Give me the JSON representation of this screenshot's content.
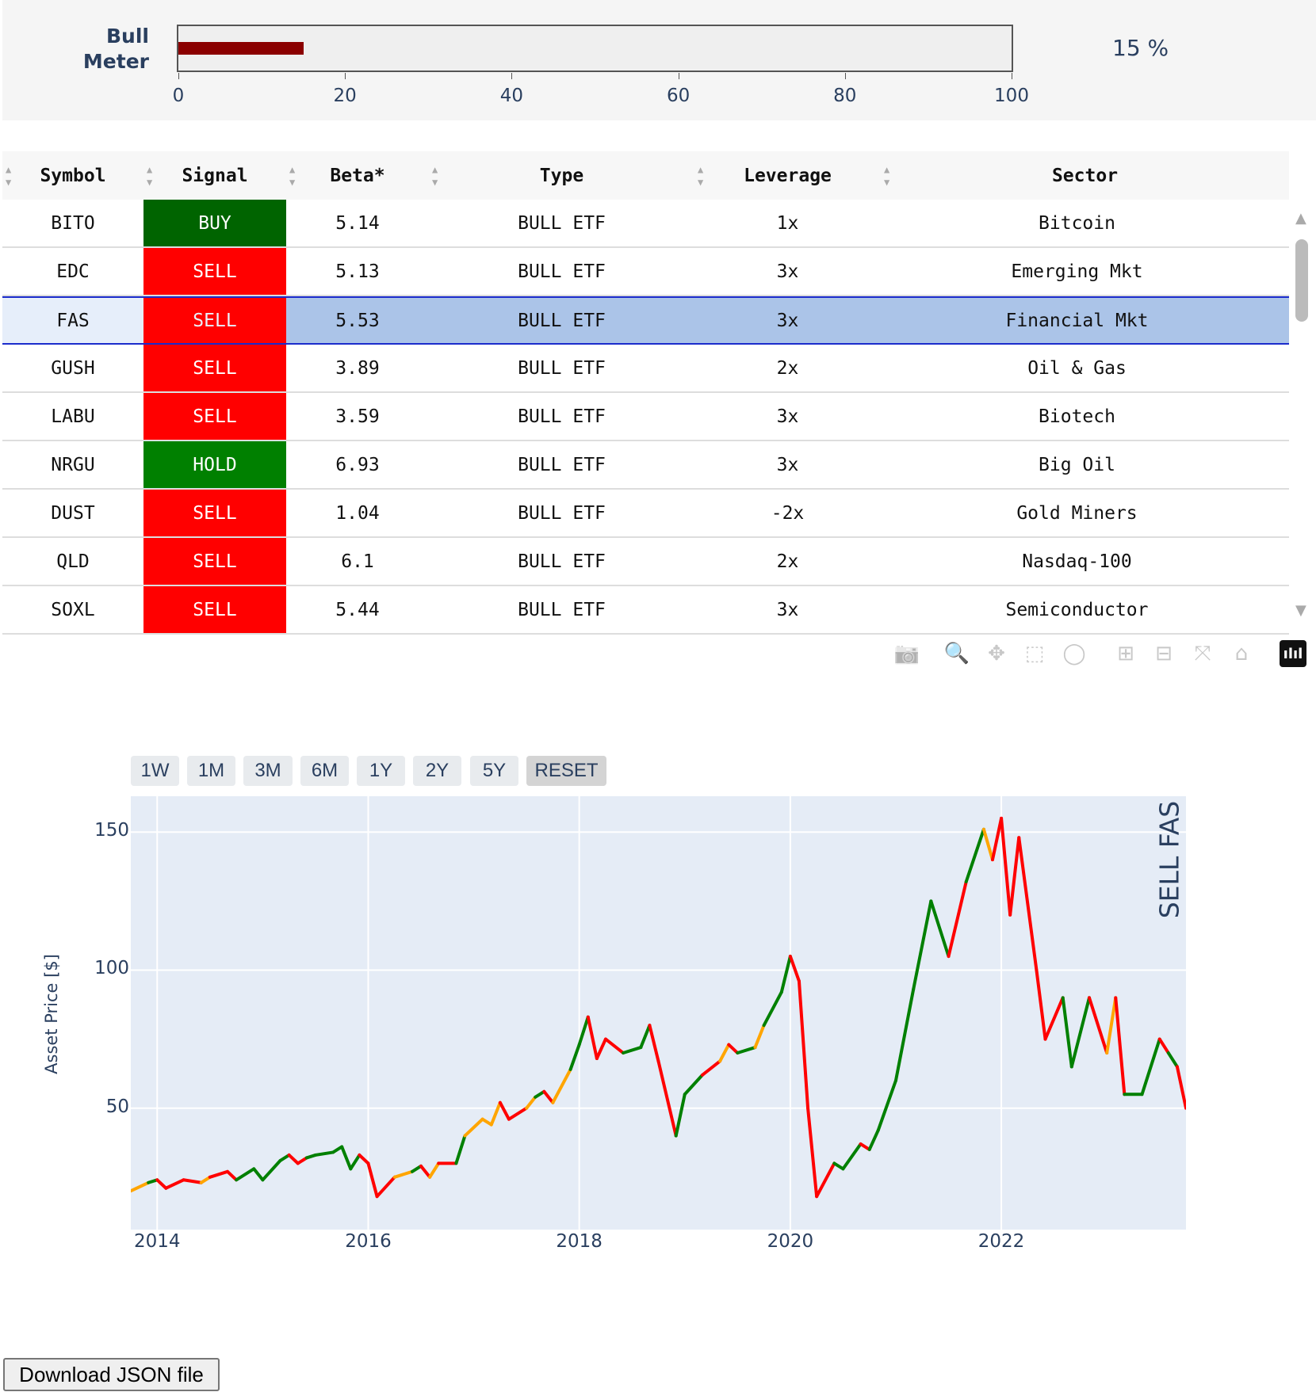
{
  "bull_meter": {
    "label_line1": "Bull",
    "label_line2": "Meter",
    "value": 15,
    "value_text": "15 %",
    "bar_color": "#8b0000",
    "ticks": [
      "0",
      "20",
      "40",
      "60",
      "80",
      "100"
    ]
  },
  "table": {
    "headers": [
      "Symbol",
      "Signal",
      "Beta*",
      "Type",
      "Leverage",
      "Sector"
    ],
    "signal_colors": {
      "BUY": "#006400",
      "HOLD": "#008000",
      "SELL": "#ff0000"
    },
    "selected_row": 2,
    "rows": [
      {
        "symbol": "BITO",
        "signal": "BUY",
        "beta": "5.14",
        "type": "BULL ETF",
        "leverage": "1x",
        "sector": "Bitcoin"
      },
      {
        "symbol": "EDC",
        "signal": "SELL",
        "beta": "5.13",
        "type": "BULL ETF",
        "leverage": "3x",
        "sector": "Emerging Mkt"
      },
      {
        "symbol": "FAS",
        "signal": "SELL",
        "beta": "5.53",
        "type": "BULL ETF",
        "leverage": "3x",
        "sector": "Financial Mkt"
      },
      {
        "symbol": "GUSH",
        "signal": "SELL",
        "beta": "3.89",
        "type": "BULL ETF",
        "leverage": "2x",
        "sector": "Oil & Gas"
      },
      {
        "symbol": "LABU",
        "signal": "SELL",
        "beta": "3.59",
        "type": "BULL ETF",
        "leverage": "3x",
        "sector": "Biotech"
      },
      {
        "symbol": "NRGU",
        "signal": "HOLD",
        "beta": "6.93",
        "type": "BULL ETF",
        "leverage": "3x",
        "sector": "Big Oil"
      },
      {
        "symbol": "DUST",
        "signal": "SELL",
        "beta": "1.04",
        "type": "BULL ETF",
        "leverage": "-2x",
        "sector": "Gold Miners"
      },
      {
        "symbol": "QLD",
        "signal": "SELL",
        "beta": "6.1",
        "type": "BULL ETF",
        "leverage": "2x",
        "sector": "Nasdaq-100"
      },
      {
        "symbol": "SOXL",
        "signal": "SELL",
        "beta": "5.44",
        "type": "BULL ETF",
        "leverage": "3x",
        "sector": "Semiconductor"
      }
    ]
  },
  "toolbar": {
    "icons": [
      "camera-icon",
      "zoom-icon",
      "pan-icon",
      "box-select-icon",
      "lasso-icon",
      "zoom-in-icon",
      "zoom-out-icon",
      "autoscale-icon",
      "reset-axes-icon",
      "plotly-logo-icon"
    ]
  },
  "range_buttons": [
    "1W",
    "1M",
    "3M",
    "6M",
    "1Y",
    "2Y",
    "5Y",
    "RESET"
  ],
  "chart_data": {
    "type": "line",
    "ylabel": "Asset Price [$]",
    "annotation": "SELL FAS",
    "xlim": [
      "2013-10",
      "2023-10"
    ],
    "ylim": [
      6,
      163
    ],
    "x_ticks": [
      "2014",
      "2016",
      "2018",
      "2020",
      "2022"
    ],
    "y_ticks": [
      50,
      100,
      150
    ],
    "grid": true,
    "signal_colors": {
      "g": "#008000",
      "r": "#ff0000",
      "o": "#ffa500"
    },
    "points": [
      [
        "2013-10",
        20,
        "r"
      ],
      [
        "2013-12",
        23,
        "o"
      ],
      [
        "2014-01",
        24,
        "g"
      ],
      [
        "2014-02",
        21,
        "r"
      ],
      [
        "2014-04",
        24,
        "r"
      ],
      [
        "2014-06",
        23,
        "r"
      ],
      [
        "2014-07",
        25,
        "o"
      ],
      [
        "2014-09",
        27,
        "r"
      ],
      [
        "2014-10",
        24,
        "r"
      ],
      [
        "2014-12",
        28,
        "g"
      ],
      [
        "2015-01",
        24,
        "g"
      ],
      [
        "2015-03",
        31,
        "g"
      ],
      [
        "2015-04",
        33,
        "g"
      ],
      [
        "2015-05",
        30,
        "r"
      ],
      [
        "2015-06",
        32,
        "r"
      ],
      [
        "2015-07",
        33,
        "g"
      ],
      [
        "2015-09",
        34,
        "g"
      ],
      [
        "2015-10",
        36,
        "g"
      ],
      [
        "2015-11",
        28,
        "g"
      ],
      [
        "2015-12",
        33,
        "g"
      ],
      [
        "2016-01",
        30,
        "r"
      ],
      [
        "2016-02",
        18,
        "r"
      ],
      [
        "2016-04",
        25,
        "r"
      ],
      [
        "2016-06",
        27,
        "o"
      ],
      [
        "2016-07",
        29,
        "g"
      ],
      [
        "2016-08",
        25,
        "r"
      ],
      [
        "2016-09",
        30,
        "o"
      ],
      [
        "2016-11",
        30,
        "r"
      ],
      [
        "2016-12",
        40,
        "g"
      ],
      [
        "2017-02",
        46,
        "o"
      ],
      [
        "2017-03",
        44,
        "o"
      ],
      [
        "2017-04",
        52,
        "o"
      ],
      [
        "2017-05",
        46,
        "r"
      ],
      [
        "2017-07",
        50,
        "r"
      ],
      [
        "2017-08",
        54,
        "o"
      ],
      [
        "2017-09",
        56,
        "g"
      ],
      [
        "2017-10",
        52,
        "r"
      ],
      [
        "2017-12",
        64,
        "o"
      ],
      [
        "2018-01",
        73,
        "g"
      ],
      [
        "2018-02",
        83,
        "g"
      ],
      [
        "2018-03",
        68,
        "r"
      ],
      [
        "2018-04",
        75,
        "r"
      ],
      [
        "2018-06",
        70,
        "r"
      ],
      [
        "2018-08",
        72,
        "g"
      ],
      [
        "2018-09",
        80,
        "g"
      ],
      [
        "2018-10",
        67,
        "r"
      ],
      [
        "2018-12",
        40,
        "r"
      ],
      [
        "2019-01",
        55,
        "g"
      ],
      [
        "2019-03",
        62,
        "g"
      ],
      [
        "2019-05",
        67,
        "r"
      ],
      [
        "2019-06",
        73,
        "o"
      ],
      [
        "2019-07",
        70,
        "r"
      ],
      [
        "2019-09",
        72,
        "g"
      ],
      [
        "2019-10",
        80,
        "o"
      ],
      [
        "2019-12",
        92,
        "g"
      ],
      [
        "2020-01",
        105,
        "g"
      ],
      [
        "2020-02",
        96,
        "r"
      ],
      [
        "2020-03",
        50,
        "r"
      ],
      [
        "2020-04",
        18,
        "r"
      ],
      [
        "2020-06",
        30,
        "r"
      ],
      [
        "2020-07",
        28,
        "g"
      ],
      [
        "2020-09",
        37,
        "g"
      ],
      [
        "2020-10",
        35,
        "r"
      ],
      [
        "2020-11",
        42,
        "g"
      ],
      [
        "2021-01",
        60,
        "g"
      ],
      [
        "2021-03",
        93,
        "g"
      ],
      [
        "2021-05",
        125,
        "g"
      ],
      [
        "2021-07",
        105,
        "g"
      ],
      [
        "2021-09",
        132,
        "r"
      ],
      [
        "2021-11",
        151,
        "g"
      ],
      [
        "2021-12",
        140,
        "o"
      ],
      [
        "2022-01",
        155,
        "r"
      ],
      [
        "2022-02",
        120,
        "r"
      ],
      [
        "2022-03",
        148,
        "r"
      ],
      [
        "2022-05",
        100,
        "r"
      ],
      [
        "2022-06",
        75,
        "r"
      ],
      [
        "2022-08",
        90,
        "r"
      ],
      [
        "2022-09",
        65,
        "g"
      ],
      [
        "2022-11",
        90,
        "g"
      ],
      [
        "2023-01",
        70,
        "r"
      ],
      [
        "2023-02",
        90,
        "o"
      ],
      [
        "2023-03",
        55,
        "r"
      ],
      [
        "2023-05",
        55,
        "g"
      ],
      [
        "2023-07",
        75,
        "g"
      ],
      [
        "2023-08",
        70,
        "r"
      ],
      [
        "2023-09",
        65,
        "g"
      ],
      [
        "2023-10",
        50,
        "r"
      ]
    ]
  },
  "download_button": "Download JSON file"
}
